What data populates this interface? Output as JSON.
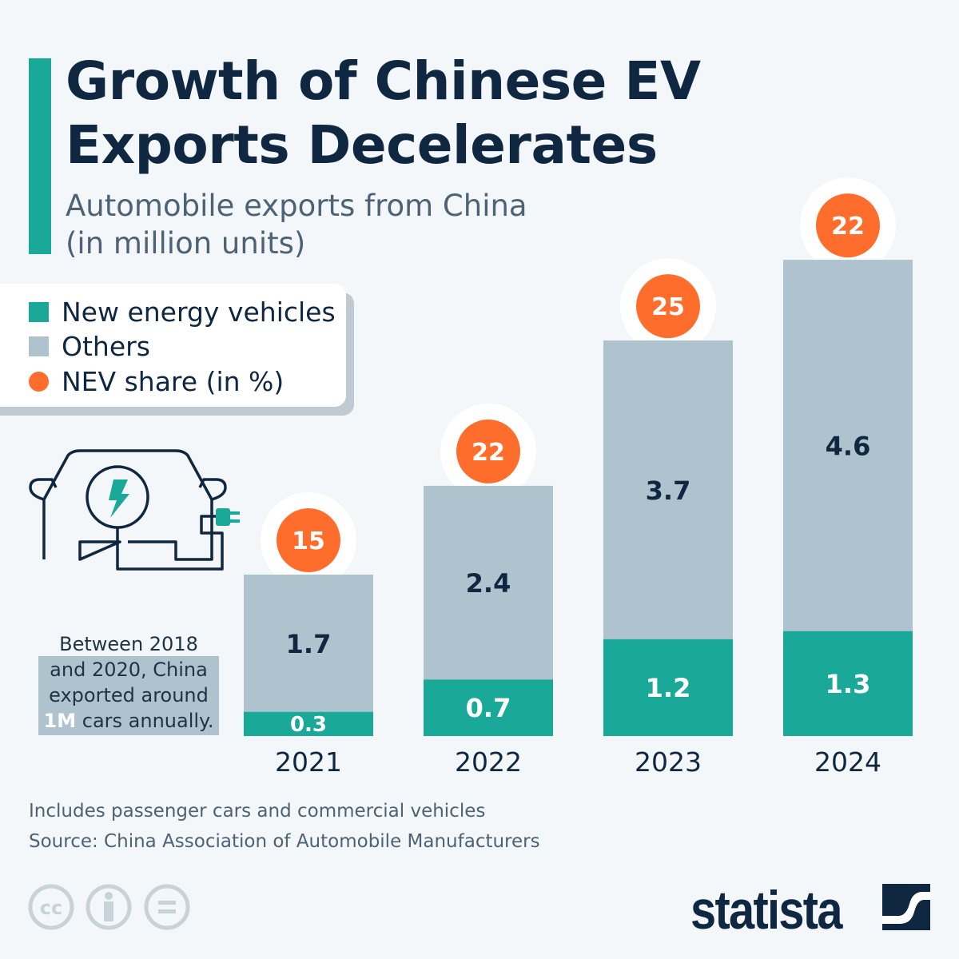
{
  "header": {
    "title_line1": "Growth of Chinese EV",
    "title_line2": "Exports Decelerates",
    "subtitle_line1": "Automobile exports from China",
    "subtitle_line2": "(in million units)"
  },
  "legend": {
    "items": [
      {
        "label": "New energy vehicles",
        "color": "#1aa898"
      },
      {
        "label": "Others",
        "color": "#aec3cd"
      },
      {
        "label": "NEV share (in %)",
        "color": "#fe6d2b"
      }
    ]
  },
  "note": {
    "line1": "Between 2018",
    "line2": "and 2020, China",
    "line3": "exported around",
    "highlight": "1M",
    "line4_rest": " cars annually."
  },
  "chart_data": {
    "type": "bar",
    "stacked": true,
    "categories": [
      "2021",
      "2022",
      "2023",
      "2024"
    ],
    "series": [
      {
        "name": "New energy vehicles",
        "values": [
          0.3,
          0.7,
          1.2,
          1.3
        ],
        "color": "#1aa898"
      },
      {
        "name": "Others",
        "values": [
          1.7,
          2.4,
          3.7,
          4.6
        ],
        "color": "#aec3cd"
      }
    ],
    "annotations": {
      "name": "NEV share (in %)",
      "values": [
        15,
        22,
        25,
        22
      ],
      "color": "#fe6d2b"
    },
    "ylim": [
      0,
      5.9
    ],
    "grid": false,
    "legend_position": "top-left"
  },
  "footer": {
    "note": "Includes passenger cars and commercial vehicles",
    "source": "Source: China Association of Automobile Manufacturers"
  },
  "brand": {
    "name": "statista",
    "icons": [
      "cc-icon",
      "attribution-icon",
      "no-derivatives-icon"
    ]
  }
}
